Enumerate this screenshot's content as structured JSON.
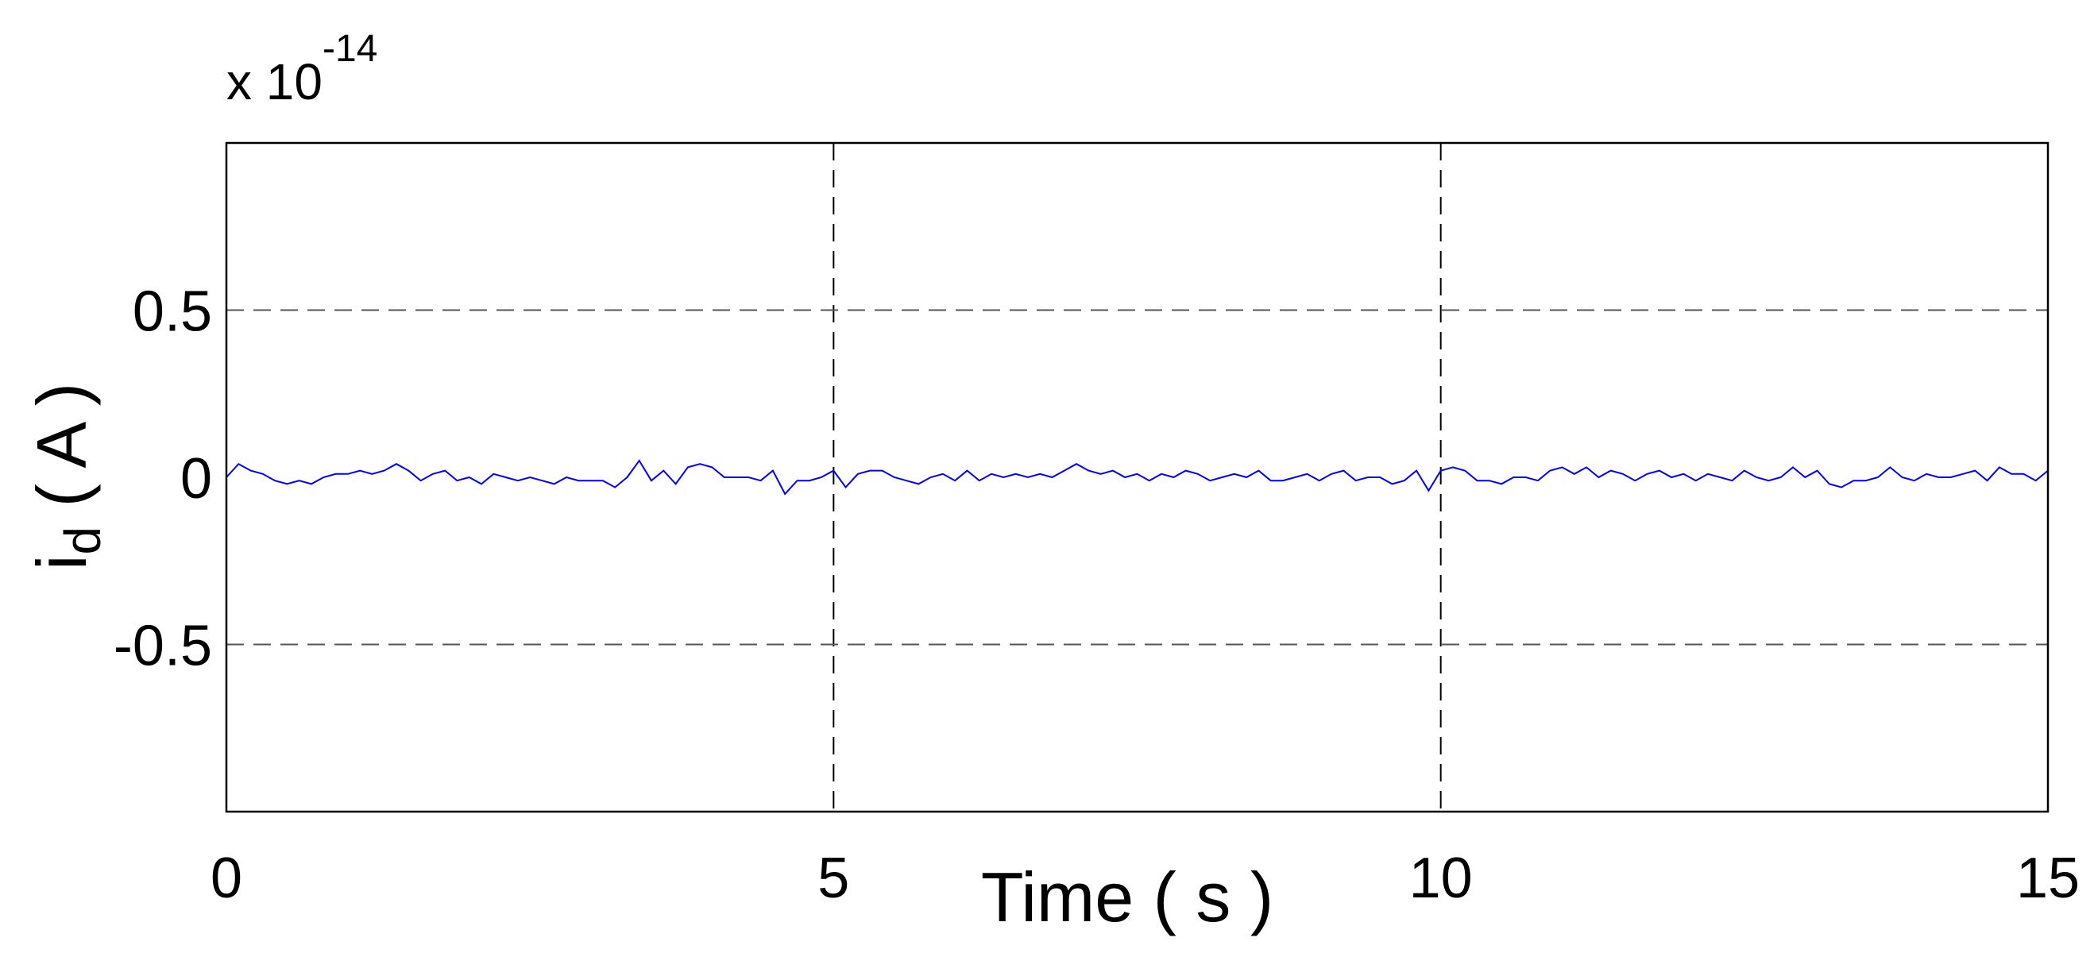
{
  "chart_data": {
    "type": "line",
    "title": "",
    "xlabel": "Time ( s )",
    "ylabel": "d ( A )",
    "ylabel_prefix": "i",
    "ylabel_subscript": "d",
    "ylabel_suffix": " ( A )",
    "y_multiplier": "x 10",
    "y_multiplier_exponent": "-14",
    "xlim": [
      0,
      15
    ],
    "ylim": [
      -1,
      1
    ],
    "xticks": [
      0,
      5,
      10,
      15
    ],
    "xtick_labels": [
      "0",
      "5",
      "10",
      "15"
    ],
    "yticks": [
      -0.5,
      0,
      0.5
    ],
    "ytick_labels": [
      "-0.5",
      "0",
      "0.5"
    ],
    "grid": true,
    "legend": "none",
    "series": [
      {
        "color": "#0000ff",
        "x": [
          0,
          0.1,
          0.2,
          0.3,
          0.4,
          0.5,
          0.6,
          0.7,
          0.8,
          0.9,
          1.0,
          1.1,
          1.2,
          1.3,
          1.4,
          1.5,
          1.6,
          1.7,
          1.8,
          1.9,
          2.0,
          2.1,
          2.2,
          2.3,
          2.4,
          2.5,
          2.6,
          2.7,
          2.8,
          2.9,
          3.0,
          3.1,
          3.2,
          3.3,
          3.4,
          3.5,
          3.6,
          3.7,
          3.8,
          3.9,
          4.0,
          4.1,
          4.2,
          4.3,
          4.4,
          4.5,
          4.6,
          4.7,
          4.8,
          4.9,
          5.0,
          5.1,
          5.2,
          5.3,
          5.4,
          5.5,
          5.6,
          5.7,
          5.8,
          5.9,
          6.0,
          6.1,
          6.2,
          6.3,
          6.4,
          6.5,
          6.6,
          6.7,
          6.8,
          6.9,
          7.0,
          7.1,
          7.2,
          7.3,
          7.4,
          7.5,
          7.6,
          7.7,
          7.8,
          7.9,
          8.0,
          8.1,
          8.2,
          8.3,
          8.4,
          8.5,
          8.6,
          8.7,
          8.8,
          8.9,
          9.0,
          9.1,
          9.2,
          9.3,
          9.4,
          9.5,
          9.6,
          9.7,
          9.8,
          9.9,
          10.0,
          10.1,
          10.2,
          10.3,
          10.4,
          10.5,
          10.6,
          10.7,
          10.8,
          10.9,
          11.0,
          11.1,
          11.2,
          11.3,
          11.4,
          11.5,
          11.6,
          11.7,
          11.8,
          11.9,
          12.0,
          12.1,
          12.2,
          12.3,
          12.4,
          12.5,
          12.6,
          12.7,
          12.8,
          12.9,
          13.0,
          13.1,
          13.2,
          13.3,
          13.4,
          13.5,
          13.6,
          13.7,
          13.8,
          13.9,
          14.0,
          14.1,
          14.2,
          14.3,
          14.4,
          14.5,
          14.6,
          14.7,
          14.8,
          14.9,
          15.0
        ],
        "y": [
          0.0,
          0.04,
          0.02,
          0.01,
          -0.01,
          -0.02,
          -0.01,
          -0.02,
          0.0,
          0.01,
          0.01,
          0.02,
          0.01,
          0.02,
          0.04,
          0.02,
          -0.01,
          0.01,
          0.02,
          -0.01,
          0.0,
          -0.02,
          0.01,
          0.0,
          -0.01,
          0.0,
          -0.01,
          -0.02,
          0.0,
          -0.01,
          -0.01,
          -0.01,
          -0.03,
          0.0,
          0.05,
          -0.01,
          0.02,
          -0.02,
          0.03,
          0.04,
          0.03,
          0.0,
          0.0,
          0.0,
          -0.01,
          0.02,
          -0.05,
          -0.01,
          -0.01,
          0.0,
          0.02,
          -0.03,
          0.01,
          0.02,
          0.02,
          0.0,
          -0.01,
          -0.02,
          0.0,
          0.01,
          -0.01,
          0.02,
          -0.01,
          0.01,
          0.0,
          0.01,
          0.0,
          0.01,
          0.0,
          0.02,
          0.04,
          0.02,
          0.01,
          0.02,
          0.0,
          0.01,
          -0.01,
          0.01,
          0.0,
          0.02,
          0.01,
          -0.01,
          0.0,
          0.01,
          0.0,
          0.02,
          -0.01,
          -0.01,
          0.0,
          0.01,
          -0.01,
          0.01,
          0.02,
          -0.01,
          0.0,
          0.0,
          -0.02,
          -0.01,
          0.02,
          -0.04,
          0.02,
          0.03,
          0.02,
          -0.01,
          -0.01,
          -0.02,
          0.0,
          0.0,
          -0.01,
          0.02,
          0.03,
          0.01,
          0.03,
          0.0,
          0.02,
          0.01,
          -0.01,
          0.01,
          0.02,
          0.0,
          0.01,
          -0.01,
          0.01,
          0.0,
          -0.01,
          0.02,
          0.0,
          -0.01,
          0.0,
          0.03,
          0.0,
          0.02,
          -0.02,
          -0.03,
          -0.01,
          -0.01,
          0.0,
          0.03,
          0.0,
          -0.01,
          0.01,
          0.0,
          0.0,
          0.01,
          0.02,
          -0.01,
          0.03,
          0.01,
          0.01,
          -0.01,
          0.02
        ]
      }
    ]
  }
}
